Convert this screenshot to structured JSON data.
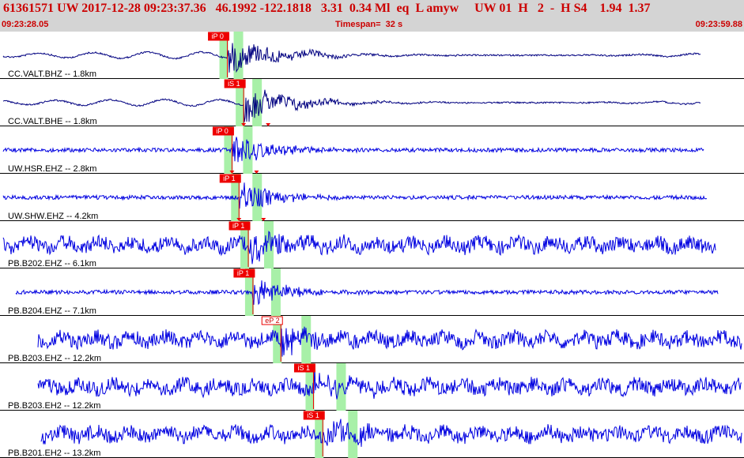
{
  "header": {
    "event_line": "61361571 UW 2017-12-28 09:23:37.36   46.1992 -122.1818   3.31  0.34 Ml  eq  L amyw     UW 01  H   2  -  H S4    1.94  1.37",
    "start_time": "09:23:28.05",
    "timespan": "Timespan=  32 s",
    "end_time": "09:23:59.88"
  },
  "colors": {
    "header_bg": "#d4d4d4",
    "header_text": "#cc0000",
    "trace_broadband": "#000080",
    "trace_short_period": "#0000e0",
    "pick_red": "#ee0000",
    "window_green": "#a8f0a8"
  },
  "traces": [
    {
      "label": "CC.VALT.BHZ -- 1.8km",
      "kind": "broadband",
      "pick": {
        "label": "iP 0",
        "time": 9.7
      },
      "quake_amp": 0.85
    },
    {
      "label": "CC.VALT.BHE -- 1.8km",
      "kind": "broadband",
      "pick": {
        "label": "iS 1",
        "time": 10.4
      },
      "quake_amp": 0.9
    },
    {
      "label": "UW.HSR.EHZ -- 2.8km",
      "kind": "short_period",
      "pick": {
        "label": "iP 0",
        "time": 9.9
      },
      "quake_amp": 0.85
    },
    {
      "label": "UW.SHW.EHZ -- 4.2km",
      "kind": "short_period",
      "pick": {
        "label": "iP 1",
        "time": 10.2
      },
      "quake_amp": 0.8
    },
    {
      "label": "PB.B202.EHZ -- 6.1km",
      "kind": "noisy",
      "pick": {
        "label": "iP 1",
        "time": 10.6
      },
      "quake_amp": 0.7
    },
    {
      "label": "PB.B204.EHZ -- 7.1km",
      "kind": "short_period",
      "pick": {
        "label": "iP 1",
        "time": 10.8
      },
      "quake_amp": 0.75
    },
    {
      "label": "PB.B203.EHZ -- 12.2km",
      "kind": "noisy",
      "pick": {
        "label": "eP 2",
        "time": 12.0
      },
      "quake_amp": 0.6
    },
    {
      "label": "PB.B203.EH2 -- 12.2km",
      "kind": "noisy",
      "pick": {
        "label": "iS 1",
        "time": 13.4
      },
      "quake_amp": 0.75
    },
    {
      "label": "PB.B201.EH2 -- 13.2km",
      "kind": "noisy",
      "pick": {
        "label": "iS 1",
        "time": 13.8
      },
      "quake_amp": 0.75
    }
  ]
}
